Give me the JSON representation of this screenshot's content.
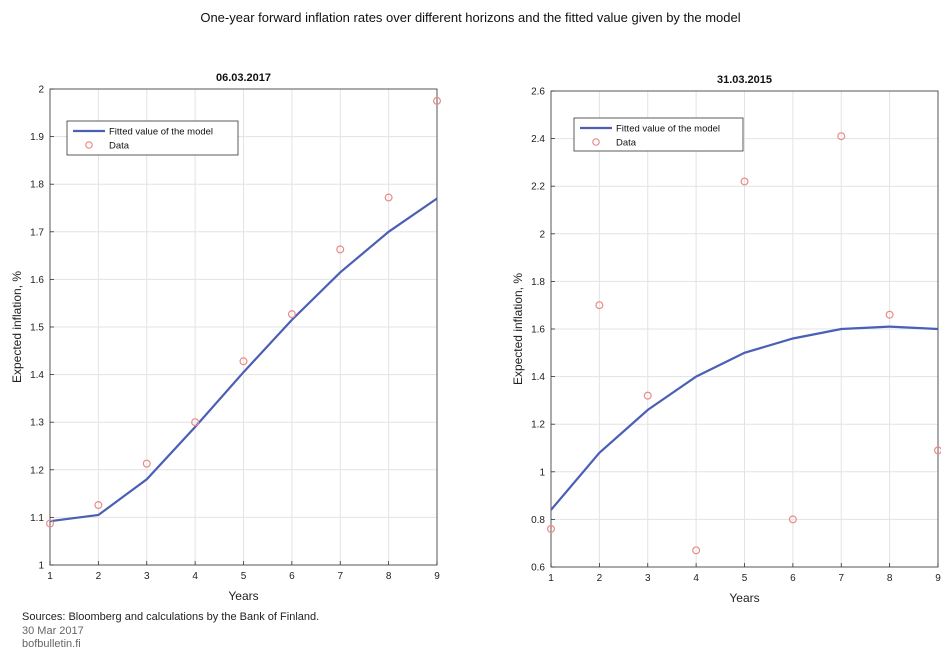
{
  "figure": {
    "title": "One-year forward inflation rates over different horizons and the fitted value given by the model",
    "source": "Sources: Bloomberg and calculations by the Bank of Finland.",
    "date": "30 Mar 2017",
    "site": "bofbulletin.fi"
  },
  "colors": {
    "fitted": "#4a5fb5",
    "data": "#e98a8a",
    "grid": "#e3e3e3",
    "axis": "#333333"
  },
  "chart_data": [
    {
      "type": "line",
      "title": "06.03.2017",
      "xlabel": "Years",
      "ylabel": "Expected inflation, %",
      "xlim": [
        1,
        9
      ],
      "ylim": [
        1,
        2
      ],
      "xticks": [
        1,
        2,
        3,
        4,
        5,
        6,
        7,
        8,
        9
      ],
      "yticks": [
        1,
        1.1,
        1.2,
        1.3,
        1.4,
        1.5,
        1.6,
        1.7,
        1.8,
        1.9,
        2
      ],
      "grid": true,
      "legend_position": "top-left",
      "series": [
        {
          "name": "Fitted value of the model",
          "style": "line",
          "x": [
            1,
            2,
            3,
            4,
            5,
            6,
            7,
            8,
            9
          ],
          "y": [
            1.092,
            1.105,
            1.18,
            1.29,
            1.405,
            1.515,
            1.615,
            1.7,
            1.77
          ]
        },
        {
          "name": "Data",
          "style": "markers",
          "x": [
            1,
            2,
            3,
            4,
            5,
            6,
            7,
            8,
            9
          ],
          "y": [
            1.087,
            1.126,
            1.213,
            1.3,
            1.428,
            1.527,
            1.663,
            1.772,
            1.975
          ]
        }
      ]
    },
    {
      "type": "line",
      "title": "31.03.2015",
      "xlabel": "Years",
      "ylabel": "Expected inflation, %",
      "xlim": [
        1,
        9
      ],
      "ylim": [
        0.6,
        2.6
      ],
      "xticks": [
        1,
        2,
        3,
        4,
        5,
        6,
        7,
        8,
        9
      ],
      "yticks": [
        0.6,
        0.8,
        1,
        1.2,
        1.4,
        1.6,
        1.8,
        2,
        2.2,
        2.4,
        2.6
      ],
      "grid": true,
      "legend_position": "top-left",
      "series": [
        {
          "name": "Fitted value of the model",
          "style": "line",
          "x": [
            1,
            2,
            3,
            4,
            5,
            6,
            7,
            8,
            9
          ],
          "y": [
            0.84,
            1.08,
            1.26,
            1.4,
            1.5,
            1.56,
            1.6,
            1.61,
            1.6
          ]
        },
        {
          "name": "Data",
          "style": "markers",
          "x": [
            1,
            2,
            3,
            4,
            5,
            6,
            7,
            8,
            9
          ],
          "y": [
            0.76,
            1.7,
            1.32,
            0.67,
            2.22,
            0.8,
            2.41,
            1.66,
            1.09
          ]
        }
      ]
    }
  ]
}
